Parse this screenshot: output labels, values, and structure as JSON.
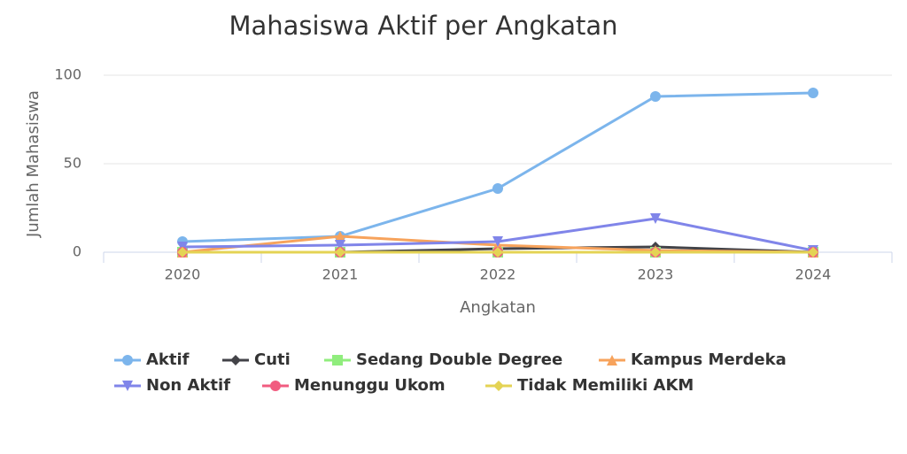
{
  "chart_data": {
    "type": "line",
    "title": "Mahasiswa Aktif per Angkatan",
    "x_label": "Angkatan",
    "y_label": "Jumlah Mahasiswa",
    "categories": [
      "2020",
      "2021",
      "2022",
      "2023",
      "2024"
    ],
    "ylim": [
      0,
      100
    ],
    "yticks": [
      0,
      50,
      100
    ],
    "grid": true,
    "series": [
      {
        "name": "Aktif",
        "color": "#7cb5ec",
        "marker": "circle",
        "values": [
          6,
          9,
          36,
          88,
          90
        ]
      },
      {
        "name": "Cuti",
        "color": "#434348",
        "marker": "diamond",
        "values": [
          0,
          0,
          2,
          3,
          0
        ]
      },
      {
        "name": "Sedang Double Degree",
        "color": "#90ed7d",
        "marker": "square",
        "values": [
          0,
          0,
          0,
          0,
          0
        ]
      },
      {
        "name": "Kampus Merdeka",
        "color": "#f7a35c",
        "marker": "triangle",
        "values": [
          0,
          9,
          4,
          1,
          0
        ]
      },
      {
        "name": "Non Aktif",
        "color": "#8085e9",
        "marker": "triangle-down",
        "values": [
          3,
          4,
          6,
          19,
          1
        ]
      },
      {
        "name": "Menunggu Ukom",
        "color": "#f15c80",
        "marker": "circle",
        "values": [
          0,
          0,
          0,
          0,
          0
        ]
      },
      {
        "name": "Tidak Memiliki AKM",
        "color": "#e4d354",
        "marker": "diamond",
        "values": [
          0,
          0,
          0,
          0,
          0
        ]
      }
    ]
  }
}
